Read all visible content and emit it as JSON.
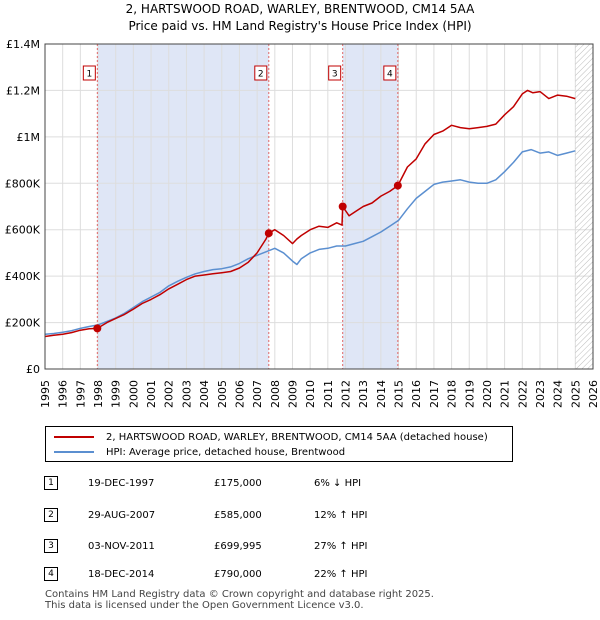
{
  "title_line1": "2, HARTSWOOD ROAD, WARLEY, BRENTWOOD, CM14 5AA",
  "title_line2": "Price paid vs. HM Land Registry's House Price Index (HPI)",
  "chart_data": {
    "type": "line",
    "xlim": [
      1995,
      2026
    ],
    "ylim": [
      0,
      1400000
    ],
    "x_ticks": [
      1995,
      1996,
      1997,
      1998,
      1999,
      2000,
      2001,
      2002,
      2003,
      2004,
      2005,
      2006,
      2007,
      2008,
      2009,
      2010,
      2011,
      2012,
      2013,
      2014,
      2015,
      2016,
      2017,
      2018,
      2019,
      2020,
      2021,
      2022,
      2023,
      2024,
      2025,
      2026
    ],
    "y_ticks": [
      {
        "value": 0,
        "label": "£0"
      },
      {
        "value": 200000,
        "label": "£200K"
      },
      {
        "value": 400000,
        "label": "£400K"
      },
      {
        "value": 600000,
        "label": "£600K"
      },
      {
        "value": 800000,
        "label": "£800K"
      },
      {
        "value": 1000000,
        "label": "£1M"
      },
      {
        "value": 1200000,
        "label": "£1.2M"
      },
      {
        "value": 1400000,
        "label": "£1.4M"
      }
    ],
    "shaded_periods": [
      [
        1997.96,
        2007.66
      ],
      [
        2011.84,
        2014.96
      ]
    ],
    "hatched_from": 2025.0,
    "series": [
      {
        "name": "2, HARTSWOOD ROAD, WARLEY, BRENTWOOD, CM14 5AA (detached house)",
        "color": "#c00000",
        "x": [
          1995.0,
          1995.5,
          1996.0,
          1996.5,
          1997.0,
          1997.5,
          1997.96,
          1998.5,
          1999.0,
          1999.5,
          2000.0,
          2000.5,
          2001.0,
          2001.5,
          2002.0,
          2002.5,
          2003.0,
          2003.5,
          2004.0,
          2004.5,
          2005.0,
          2005.5,
          2006.0,
          2006.5,
          2007.0,
          2007.5,
          2007.66,
          2008.0,
          2008.5,
          2009.0,
          2009.25,
          2009.5,
          2010.0,
          2010.5,
          2011.0,
          2011.5,
          2011.8,
          2011.84,
          2012.2,
          2012.6,
          2013.0,
          2013.5,
          2014.0,
          2014.5,
          2014.96,
          2015.5,
          2016.0,
          2016.5,
          2017.0,
          2017.5,
          2018.0,
          2018.5,
          2019.0,
          2019.5,
          2020.0,
          2020.5,
          2021.0,
          2021.5,
          2022.0,
          2022.3,
          2022.6,
          2023.0,
          2023.5,
          2024.0,
          2024.5,
          2025.0
        ],
        "y": [
          140000,
          145000,
          150000,
          157000,
          167000,
          173000,
          175000,
          200000,
          218000,
          235000,
          258000,
          282000,
          300000,
          320000,
          345000,
          365000,
          385000,
          400000,
          405000,
          410000,
          415000,
          420000,
          435000,
          460000,
          500000,
          560000,
          585000,
          600000,
          575000,
          540000,
          560000,
          575000,
          600000,
          615000,
          610000,
          630000,
          620000,
          699995,
          660000,
          680000,
          700000,
          715000,
          745000,
          765000,
          790000,
          870000,
          905000,
          970000,
          1010000,
          1025000,
          1050000,
          1040000,
          1035000,
          1040000,
          1045000,
          1055000,
          1095000,
          1130000,
          1185000,
          1200000,
          1190000,
          1195000,
          1165000,
          1180000,
          1175000,
          1165000
        ]
      },
      {
        "name": "HPI: Average price, detached house, Brentwood",
        "color": "#5b8fd0",
        "x": [
          1995.0,
          1995.5,
          1996.0,
          1996.5,
          1997.0,
          1997.5,
          1998.0,
          1998.5,
          1999.0,
          1999.5,
          2000.0,
          2000.5,
          2001.0,
          2001.5,
          2002.0,
          2002.5,
          2003.0,
          2003.5,
          2004.0,
          2004.5,
          2005.0,
          2005.5,
          2006.0,
          2006.5,
          2007.0,
          2007.5,
          2008.0,
          2008.5,
          2009.0,
          2009.25,
          2009.5,
          2010.0,
          2010.5,
          2011.0,
          2011.5,
          2012.0,
          2012.5,
          2013.0,
          2013.5,
          2014.0,
          2014.5,
          2015.0,
          2015.5,
          2016.0,
          2016.5,
          2017.0,
          2017.5,
          2018.0,
          2018.5,
          2019.0,
          2019.5,
          2020.0,
          2020.5,
          2021.0,
          2021.5,
          2022.0,
          2022.5,
          2023.0,
          2023.5,
          2024.0,
          2024.5,
          2025.0
        ],
        "y": [
          150000,
          153000,
          158000,
          165000,
          175000,
          183000,
          190000,
          205000,
          220000,
          240000,
          265000,
          290000,
          310000,
          330000,
          358000,
          378000,
          395000,
          410000,
          420000,
          428000,
          432000,
          440000,
          455000,
          475000,
          490000,
          505000,
          520000,
          500000,
          465000,
          450000,
          475000,
          500000,
          515000,
          520000,
          530000,
          530000,
          540000,
          550000,
          570000,
          590000,
          615000,
          640000,
          690000,
          735000,
          765000,
          795000,
          805000,
          810000,
          815000,
          805000,
          800000,
          800000,
          815000,
          850000,
          890000,
          935000,
          945000,
          930000,
          935000,
          920000,
          930000,
          940000
        ]
      }
    ],
    "sale_markers": [
      {
        "label": "1",
        "x": 1997.96,
        "y": 175000
      },
      {
        "label": "2",
        "x": 2007.66,
        "y": 585000
      },
      {
        "label": "3",
        "x": 2011.84,
        "y": 699995
      },
      {
        "label": "4",
        "x": 2014.96,
        "y": 790000
      }
    ]
  },
  "legend": {
    "property": "2, HARTSWOOD ROAD, WARLEY, BRENTWOOD, CM14 5AA (detached house)",
    "hpi": "HPI: Average price, detached house, Brentwood"
  },
  "sales": [
    {
      "num": "1",
      "date": "19-DEC-1997",
      "price": "£175,000",
      "hpi": "6% ↓ HPI"
    },
    {
      "num": "2",
      "date": "29-AUG-2007",
      "price": "£585,000",
      "hpi": "12% ↑ HPI"
    },
    {
      "num": "3",
      "date": "03-NOV-2011",
      "price": "£699,995",
      "hpi": "27% ↑ HPI"
    },
    {
      "num": "4",
      "date": "18-DEC-2014",
      "price": "£790,000",
      "hpi": "22% ↑ HPI"
    }
  ],
  "footer": {
    "line1": "Contains HM Land Registry data © Crown copyright and database right 2025.",
    "line2": "This data is licensed under the Open Government Licence v3.0."
  }
}
